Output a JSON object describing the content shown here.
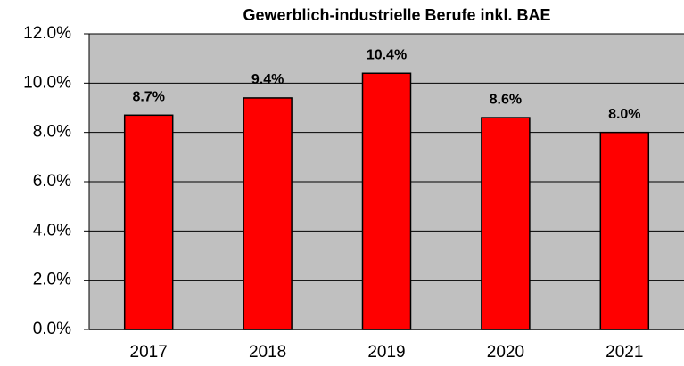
{
  "chart_data": {
    "type": "bar",
    "title": "Gewerblich-industrielle Berufe inkl. BAE",
    "categories": [
      "2017",
      "2018",
      "2019",
      "2020",
      "2021"
    ],
    "values": [
      8.7,
      9.4,
      10.4,
      8.6,
      8.0
    ],
    "value_labels": [
      "8.7%",
      "9.4%",
      "10.4%",
      "8.6%",
      "8.0%"
    ],
    "color": "#ff0000",
    "ylim": [
      0,
      12
    ],
    "yticks": [
      {
        "value": 0,
        "label": "0.0%"
      },
      {
        "value": 2,
        "label": "2.0%"
      },
      {
        "value": 4,
        "label": "4.0%"
      },
      {
        "value": 6,
        "label": "6.0%"
      },
      {
        "value": 8,
        "label": "8.0%"
      },
      {
        "value": 10,
        "label": "10.0%"
      },
      {
        "value": 12,
        "label": "12.0%"
      }
    ],
    "grid": true
  }
}
